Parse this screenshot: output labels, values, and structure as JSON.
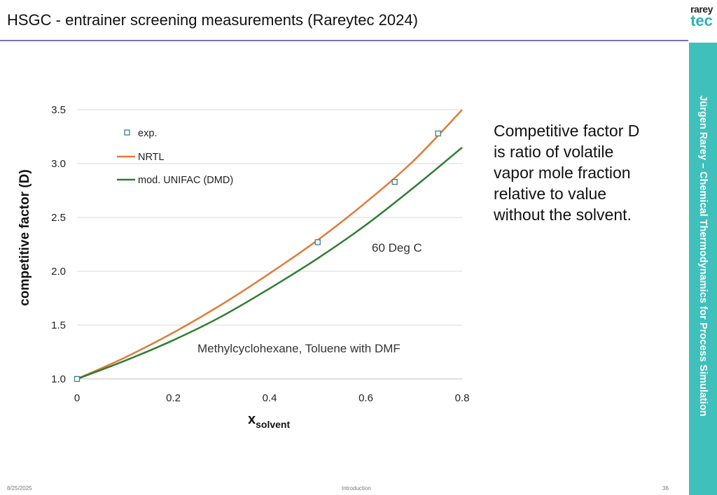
{
  "slide": {
    "title": "HSGC - entrainer screening measurements (Rareytec 2024)",
    "logo_top": "rarey",
    "logo_bottom": "tec",
    "side_banner": "Jürgen Rarey – Chemical Thermodynamics for Process Simulation",
    "description": "Competitive factor D\nis ratio of volatile\nvapor mole fraction\nrelative to value\nwithout the solvent.",
    "footer_date": "8/25/2025",
    "footer_center": "Introduction",
    "footer_page": "36",
    "colors": {
      "accent_rule": "#7b6fb5",
      "side_band": "#3fc0bb",
      "logo_tec": "#2bb3b1"
    }
  },
  "chart_data": {
    "type": "line",
    "xlabel_main": "x",
    "xlabel_sub": "solvent",
    "ylabel": "competitive factor (D)",
    "xlim": [
      0,
      0.8
    ],
    "ylim": [
      1.0,
      3.5
    ],
    "xticks": [
      "0",
      "0.2",
      "0.4",
      "0.6",
      "0.8"
    ],
    "yticks": [
      "1.0",
      "1.5",
      "2.0",
      "2.5",
      "3.0",
      "3.5"
    ],
    "grid": "horizontal",
    "legend_position": "top-left",
    "annotations": [
      "60 Deg C",
      "Methylcyclohexane, Toluene with DMF"
    ],
    "series": [
      {
        "name": "exp.",
        "kind": "marker",
        "marker": "open-square",
        "color": "#3a7d8c",
        "x": [
          0,
          0.5,
          0.66,
          0.75
        ],
        "y": [
          1.0,
          2.27,
          2.83,
          3.28
        ]
      },
      {
        "name": "NRTL",
        "kind": "line",
        "color": "#e07b39",
        "x": [
          0,
          0.1,
          0.2,
          0.3,
          0.4,
          0.5,
          0.6,
          0.7,
          0.8
        ],
        "y": [
          1.0,
          1.2,
          1.43,
          1.69,
          1.98,
          2.29,
          2.64,
          3.03,
          3.5
        ]
      },
      {
        "name": "mod. UNIFAC (DMD)",
        "kind": "line",
        "color": "#2e7d32",
        "x": [
          0,
          0.1,
          0.2,
          0.3,
          0.4,
          0.5,
          0.6,
          0.7,
          0.8
        ],
        "y": [
          1.0,
          1.17,
          1.36,
          1.58,
          1.84,
          2.12,
          2.43,
          2.78,
          3.15
        ]
      }
    ]
  }
}
